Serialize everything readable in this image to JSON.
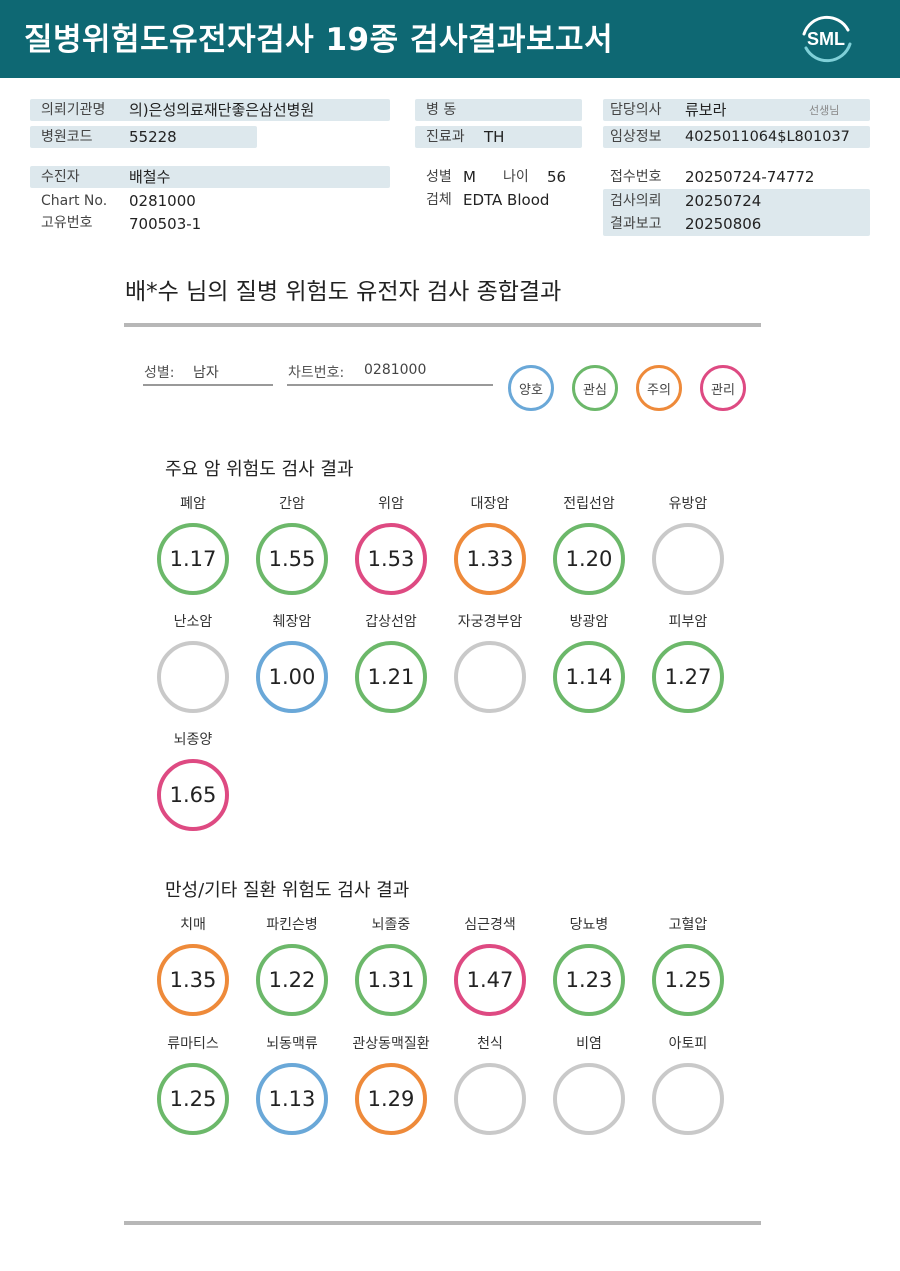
{
  "header": {
    "title": "질병위험도유전자검사 19종 검사결과보고서",
    "logo_text": "SML"
  },
  "info": {
    "org_label": "의뢰기관명",
    "org_value": "의)은성의료재단좋은삼선병원",
    "hospcode_label": "병원코드",
    "hospcode_value": "55228",
    "patient_label": "수진자",
    "patient_value": "배철수",
    "chart_label": "Chart No.",
    "chart_value": "0281000",
    "id_label": "고유번호",
    "id_value": "700503-1",
    "ward_label": "병 동",
    "ward_value": "",
    "dept_label": "진료과",
    "dept_value": "TH",
    "sex_label": "성별",
    "sex_value": "M",
    "age_label": "나이",
    "age_value": "56",
    "specimen_label": "검체",
    "specimen_value": "EDTA Blood",
    "doctor_label": "담당의사",
    "doctor_value": "류보라",
    "doctor_suffix": "선생님",
    "clinical_label": "임상정보",
    "clinical_value": "4025011064$L801037",
    "receipt_label": "접수번호",
    "receipt_value": "20250724-74772",
    "request_label": "검사의뢰",
    "request_value": "20250724",
    "report_label": "결과보고",
    "report_value": "20250806"
  },
  "summary": {
    "title": "배*수 님의 질병 위험도 유전자 검사 종합결과",
    "sex_label": "성별:",
    "sex_value": "남자",
    "chart_label": "차트번호:",
    "chart_value": "0281000"
  },
  "legend": [
    {
      "label": "양호",
      "color": "#6aa8d8"
    },
    {
      "label": "관심",
      "color": "#6cb86a"
    },
    {
      "label": "주의",
      "color": "#ee8a3a"
    },
    {
      "label": "관리",
      "color": "#de4a82"
    }
  ],
  "cancer": {
    "title": "주요 암 위험도 검사 결과",
    "items": [
      {
        "name": "폐암",
        "value": "1.17",
        "color": "#6cb86a"
      },
      {
        "name": "간암",
        "value": "1.55",
        "color": "#6cb86a"
      },
      {
        "name": "위암",
        "value": "1.53",
        "color": "#de4a82"
      },
      {
        "name": "대장암",
        "value": "1.33",
        "color": "#ee8a3a"
      },
      {
        "name": "전립선암",
        "value": "1.20",
        "color": "#6cb86a"
      },
      {
        "name": "유방암",
        "value": "",
        "color": "#c9c9c9"
      },
      {
        "name": "난소암",
        "value": "",
        "color": "#c9c9c9"
      },
      {
        "name": "췌장암",
        "value": "1.00",
        "color": "#6aa8d8"
      },
      {
        "name": "갑상선암",
        "value": "1.21",
        "color": "#6cb86a"
      },
      {
        "name": "자궁경부암",
        "value": "",
        "color": "#c9c9c9"
      },
      {
        "name": "방광암",
        "value": "1.14",
        "color": "#6cb86a"
      },
      {
        "name": "피부암",
        "value": "1.27",
        "color": "#6cb86a"
      },
      {
        "name": "뇌종양",
        "value": "1.65",
        "color": "#de4a82"
      }
    ]
  },
  "chronic": {
    "title": "만성/기타 질환 위험도 검사 결과",
    "items": [
      {
        "name": "치매",
        "value": "1.35",
        "color": "#ee8a3a"
      },
      {
        "name": "파킨슨병",
        "value": "1.22",
        "color": "#6cb86a"
      },
      {
        "name": "뇌졸중",
        "value": "1.31",
        "color": "#6cb86a"
      },
      {
        "name": "심근경색",
        "value": "1.47",
        "color": "#de4a82"
      },
      {
        "name": "당뇨병",
        "value": "1.23",
        "color": "#6cb86a"
      },
      {
        "name": "고혈압",
        "value": "1.25",
        "color": "#6cb86a"
      },
      {
        "name": "류마티스",
        "value": "1.25",
        "color": "#6cb86a"
      },
      {
        "name": "뇌동맥류",
        "value": "1.13",
        "color": "#6aa8d8"
      },
      {
        "name": "관상동맥질환",
        "value": "1.29",
        "color": "#ee8a3a"
      },
      {
        "name": "천식",
        "value": "",
        "color": "#c9c9c9"
      },
      {
        "name": "비염",
        "value": "",
        "color": "#c9c9c9"
      },
      {
        "name": "아토피",
        "value": "",
        "color": "#c9c9c9"
      }
    ]
  }
}
